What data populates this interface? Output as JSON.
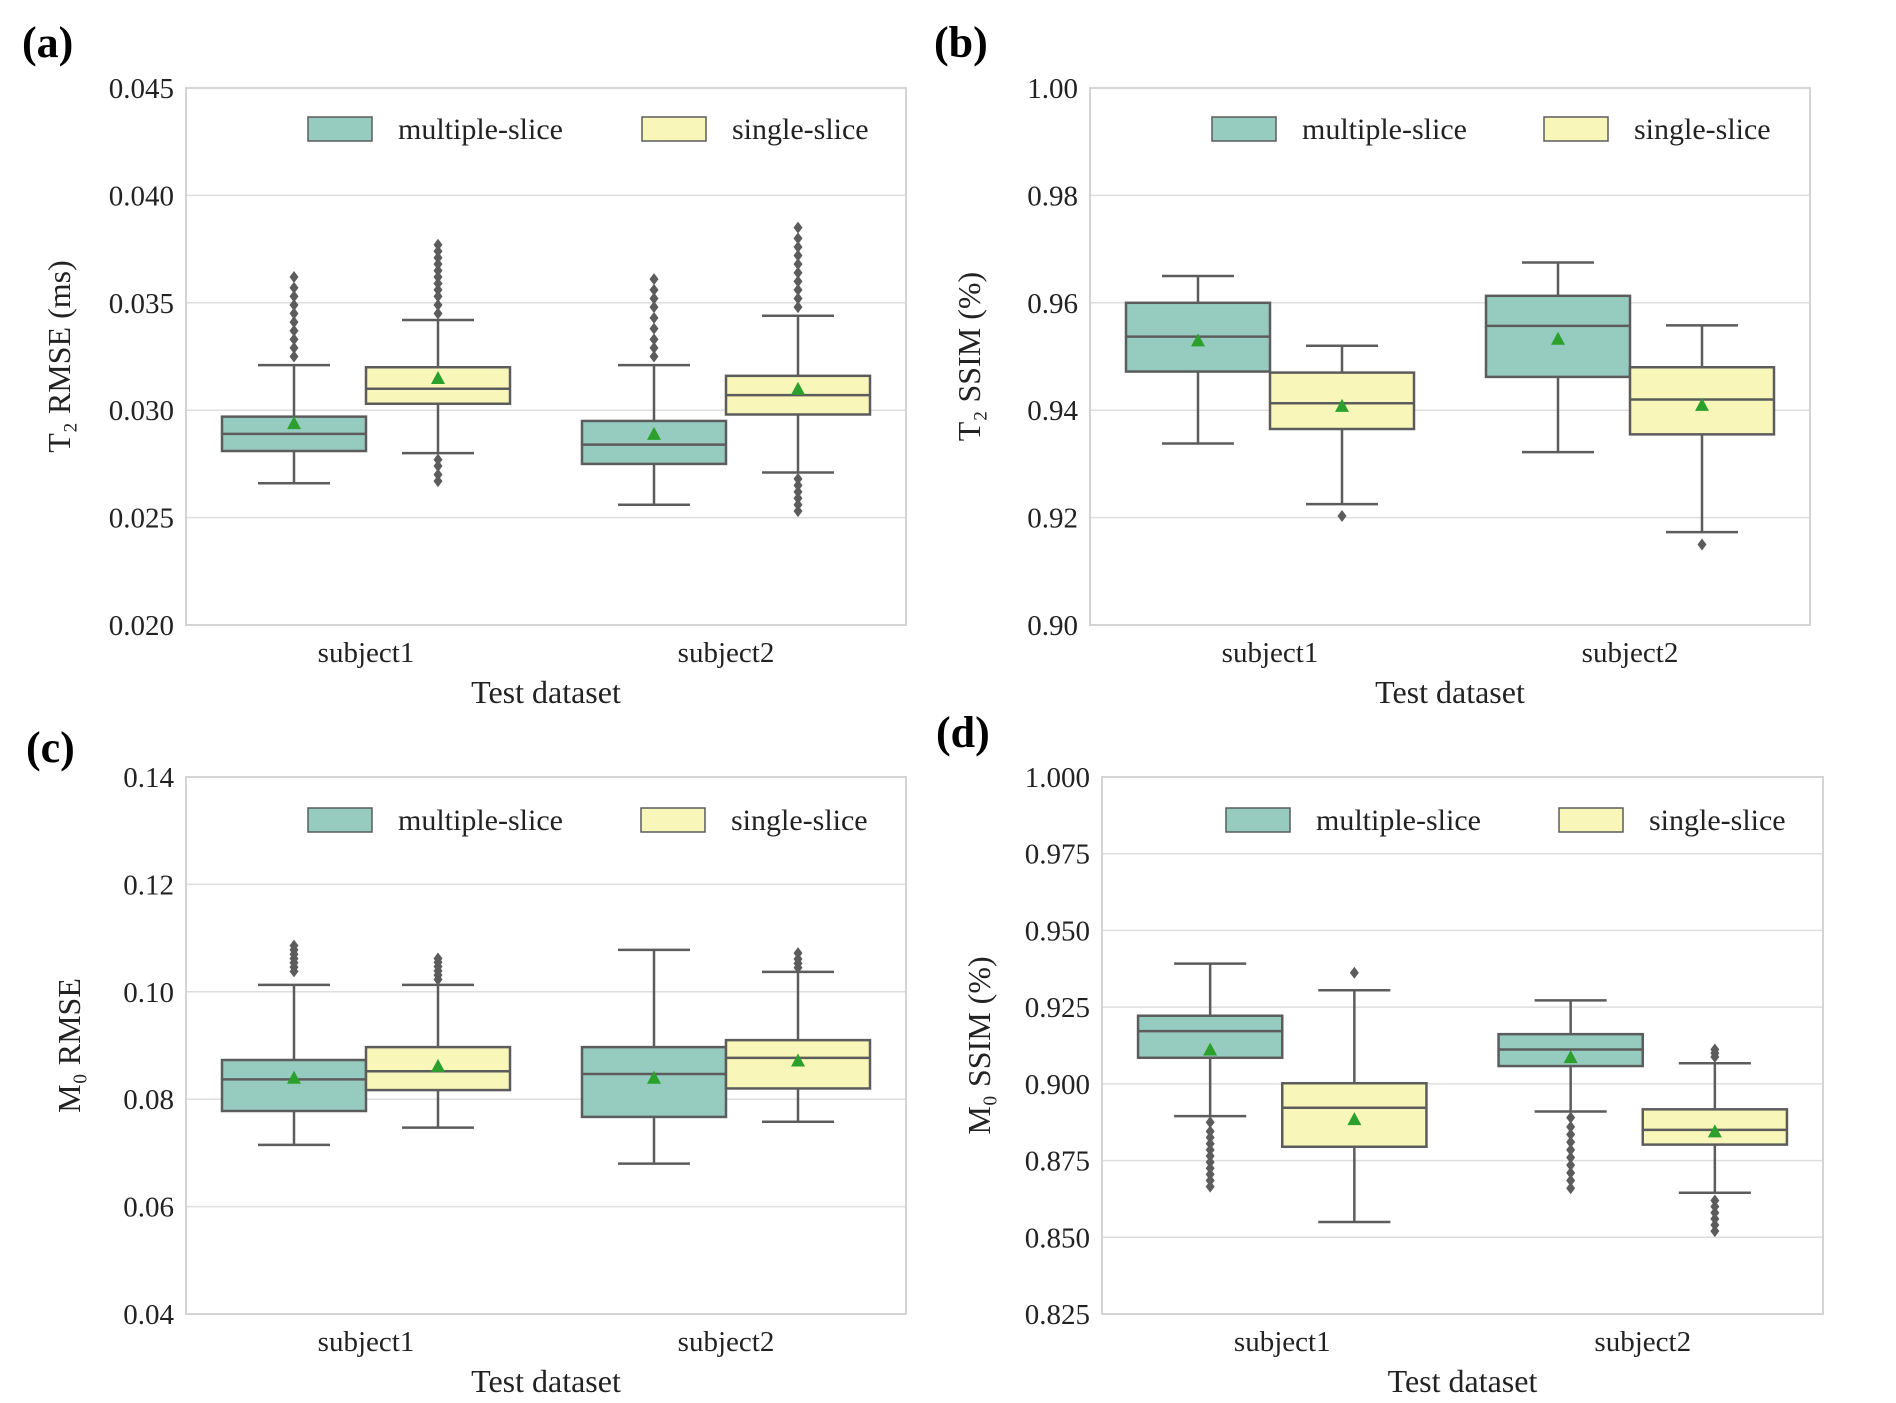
{
  "figure": {
    "colors": {
      "multiple": "#96cbc0",
      "single": "#f8f7b9",
      "box_edge": "#5c5c5c",
      "mean_marker": "#2ca02c",
      "grid": "#dedede",
      "frame": "#d4d4d4"
    }
  },
  "chart_data": [
    {
      "type": "box",
      "panel_label": "(a)",
      "ylabel": "T₂ RMSE (ms)",
      "xlabel": "Test dataset",
      "categories": [
        "subject1",
        "subject2"
      ],
      "ylim": [
        0.02,
        0.045
      ],
      "yticks": [
        0.02,
        0.025,
        0.03,
        0.035,
        0.04,
        0.045
      ],
      "ytick_labels": [
        "0.020",
        "0.025",
        "0.030",
        "0.035",
        "0.040",
        "0.045"
      ],
      "legend": [
        "multiple-slice",
        "single-slice"
      ],
      "series": [
        {
          "name": "multiple-slice",
          "boxes": [
            {
              "whislo": 0.0266,
              "q1": 0.0281,
              "med": 0.0289,
              "q3": 0.0297,
              "whishi": 0.0321,
              "mean": 0.0294,
              "fliers": [
                0.0325,
                0.0329,
                0.0333,
                0.0337,
                0.0341,
                0.0345,
                0.0349,
                0.0353,
                0.0357,
                0.0362
              ]
            },
            {
              "whislo": 0.0256,
              "q1": 0.0275,
              "med": 0.0284,
              "q3": 0.0295,
              "whishi": 0.0321,
              "mean": 0.0289,
              "fliers": [
                0.0325,
                0.0329,
                0.0333,
                0.0338,
                0.0343,
                0.0348,
                0.0352,
                0.0356,
                0.0361
              ]
            }
          ]
        },
        {
          "name": "single-slice",
          "boxes": [
            {
              "whislo": 0.028,
              "q1": 0.0303,
              "med": 0.031,
              "q3": 0.032,
              "whishi": 0.0342,
              "mean": 0.0315,
              "fliers": [
                0.0267,
                0.027,
                0.0274,
                0.0277,
                0.0345,
                0.0349,
                0.0353,
                0.0356,
                0.0359,
                0.0362,
                0.0365,
                0.0368,
                0.0371,
                0.0374,
                0.0377
              ]
            },
            {
              "whislo": 0.0271,
              "q1": 0.0298,
              "med": 0.0307,
              "q3": 0.0316,
              "whishi": 0.0344,
              "mean": 0.031,
              "fliers": [
                0.0253,
                0.0256,
                0.0259,
                0.0262,
                0.0265,
                0.0268,
                0.0348,
                0.0352,
                0.0356,
                0.036,
                0.0364,
                0.0368,
                0.0372,
                0.0376,
                0.038,
                0.0385
              ]
            }
          ]
        }
      ]
    },
    {
      "type": "box",
      "panel_label": "(b)",
      "ylabel": "T₂ SSIM (%)",
      "xlabel": "Test dataset",
      "categories": [
        "subject1",
        "subject2"
      ],
      "ylim": [
        0.9,
        1.0
      ],
      "yticks": [
        0.9,
        0.92,
        0.94,
        0.96,
        0.98,
        1.0
      ],
      "ytick_labels": [
        "0.90",
        "0.92",
        "0.94",
        "0.96",
        "0.98",
        "1.00"
      ],
      "legend": [
        "multiple-slice",
        "single-slice"
      ],
      "series": [
        {
          "name": "multiple-slice",
          "boxes": [
            {
              "whislo": 0.9338,
              "q1": 0.9472,
              "med": 0.9537,
              "q3": 0.96,
              "whishi": 0.965,
              "mean": 0.953,
              "fliers": []
            },
            {
              "whislo": 0.9322,
              "q1": 0.9462,
              "med": 0.9557,
              "q3": 0.9613,
              "whishi": 0.9675,
              "mean": 0.9533,
              "fliers": []
            }
          ]
        },
        {
          "name": "single-slice",
          "boxes": [
            {
              "whislo": 0.9225,
              "q1": 0.9365,
              "med": 0.9413,
              "q3": 0.947,
              "whishi": 0.952,
              "mean": 0.9408,
              "fliers": [
                0.9203
              ]
            },
            {
              "whislo": 0.9173,
              "q1": 0.9355,
              "med": 0.942,
              "q3": 0.948,
              "whishi": 0.9558,
              "mean": 0.941,
              "fliers": [
                0.915
              ]
            }
          ]
        }
      ]
    },
    {
      "type": "box",
      "panel_label": "(c)",
      "ylabel": "M₀ RMSE",
      "xlabel": "Test dataset",
      "categories": [
        "subject1",
        "subject2"
      ],
      "ylim": [
        0.04,
        0.14
      ],
      "yticks": [
        0.04,
        0.06,
        0.08,
        0.1,
        0.12,
        0.14
      ],
      "ytick_labels": [
        "0.04",
        "0.06",
        "0.08",
        "0.10",
        "0.12",
        "0.14"
      ],
      "legend": [
        "multiple-slice",
        "single-slice"
      ],
      "series": [
        {
          "name": "multiple-slice",
          "boxes": [
            {
              "whislo": 0.0715,
              "q1": 0.0778,
              "med": 0.0837,
              "q3": 0.0873,
              "whishi": 0.1013,
              "mean": 0.084,
              "fliers": [
                0.1038,
                0.1046,
                0.1054,
                0.1062,
                0.107,
                0.1078,
                0.1086
              ]
            },
            {
              "whislo": 0.068,
              "q1": 0.0767,
              "med": 0.0847,
              "q3": 0.0897,
              "whishi": 0.1078,
              "mean": 0.084,
              "fliers": []
            }
          ]
        },
        {
          "name": "single-slice",
          "boxes": [
            {
              "whislo": 0.0747,
              "q1": 0.0817,
              "med": 0.0852,
              "q3": 0.0897,
              "whishi": 0.1013,
              "mean": 0.0862,
              "fliers": [
                0.1023,
                0.1031,
                0.1039,
                0.1047,
                0.1055,
                0.1062
              ]
            },
            {
              "whislo": 0.0758,
              "q1": 0.082,
              "med": 0.0877,
              "q3": 0.091,
              "whishi": 0.1037,
              "mean": 0.0872,
              "fliers": [
                0.1045,
                0.1053,
                0.1061,
                0.1072
              ]
            }
          ]
        }
      ]
    },
    {
      "type": "box",
      "panel_label": "(d)",
      "ylabel": "M₀ SSIM (%)",
      "xlabel": "Test dataset",
      "categories": [
        "subject1",
        "subject2"
      ],
      "ylim": [
        0.825,
        1.0
      ],
      "yticks": [
        0.825,
        0.85,
        0.875,
        0.9,
        0.925,
        0.95,
        0.975,
        1.0
      ],
      "ytick_labels": [
        "0.825",
        "0.850",
        "0.875",
        "0.900",
        "0.925",
        "0.950",
        "0.975",
        "1.000"
      ],
      "legend": [
        "multiple-slice",
        "single-slice"
      ],
      "series": [
        {
          "name": "multiple-slice",
          "boxes": [
            {
              "whislo": 0.8895,
              "q1": 0.9085,
              "med": 0.9172,
              "q3": 0.9222,
              "whishi": 0.9392,
              "mean": 0.9112,
              "fliers": [
                0.8665,
                0.8685,
                0.8705,
                0.8725,
                0.8745,
                0.8765,
                0.8785,
                0.8805,
                0.8825,
                0.8845,
                0.8875
              ]
            },
            {
              "whislo": 0.891,
              "q1": 0.9058,
              "med": 0.9112,
              "q3": 0.9162,
              "whishi": 0.9272,
              "mean": 0.9087,
              "fliers": [
                0.866,
                0.8685,
                0.871,
                0.8735,
                0.876,
                0.8785,
                0.881,
                0.8835,
                0.886,
                0.889
              ]
            }
          ]
        },
        {
          "name": "single-slice",
          "boxes": [
            {
              "whislo": 0.855,
              "q1": 0.8795,
              "med": 0.8922,
              "q3": 0.9002,
              "whishi": 0.9305,
              "mean": 0.8885,
              "fliers": [
                0.9362
              ]
            },
            {
              "whislo": 0.8645,
              "q1": 0.8802,
              "med": 0.885,
              "q3": 0.8917,
              "whishi": 0.9067,
              "mean": 0.8845,
              "fliers": [
                0.852,
                0.854,
                0.856,
                0.858,
                0.86,
                0.862,
                0.9088,
                0.91,
                0.9112
              ]
            }
          ]
        }
      ]
    }
  ]
}
